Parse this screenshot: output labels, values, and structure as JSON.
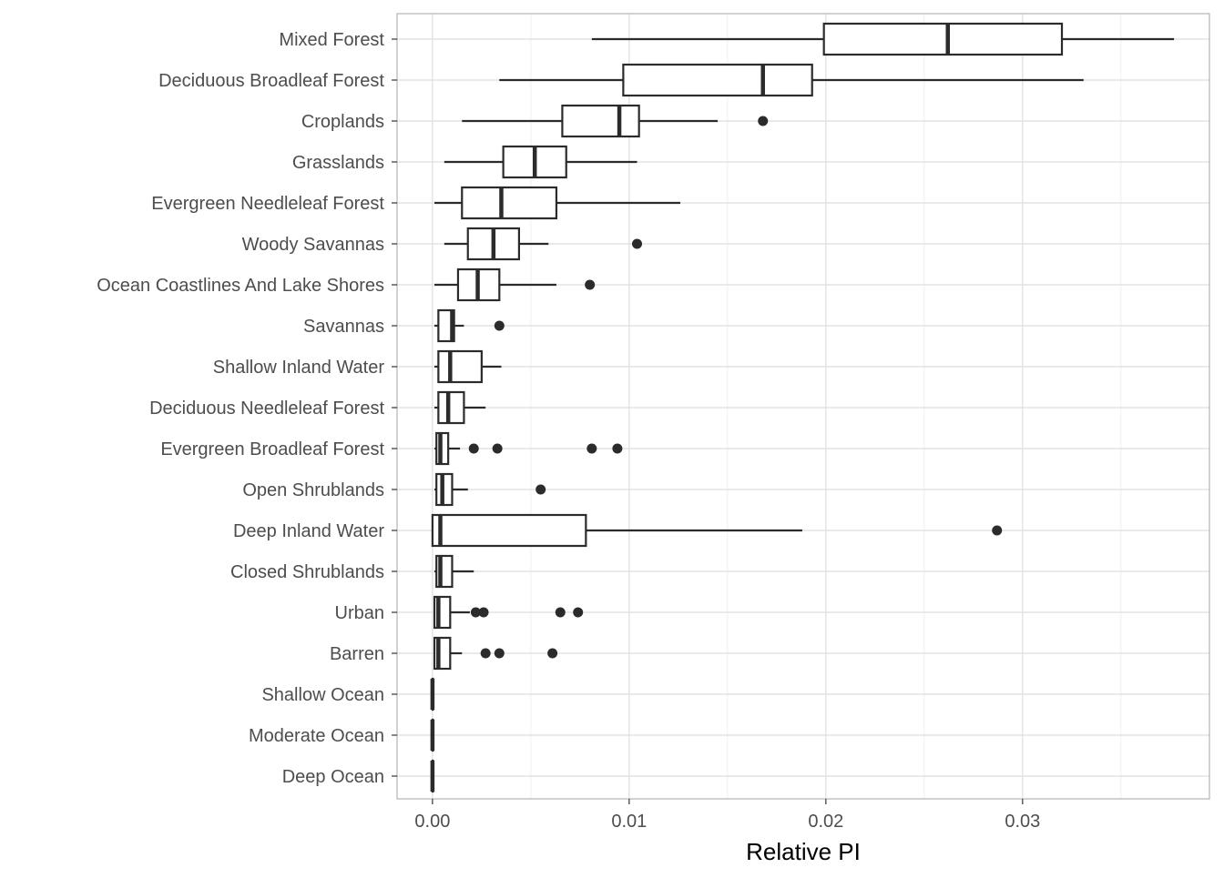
{
  "colors": {
    "grid_major": "#dedede",
    "grid_minor": "#efefef",
    "panel_border": "#b3b3b3",
    "box_stroke": "#2b2b2b",
    "outlier_fill": "#2b2b2b",
    "tick_text": "#4d4d4d"
  },
  "chart_data": {
    "type": "boxplot",
    "orientation": "horizontal",
    "title": "",
    "xlabel": "Relative PI",
    "ylabel": "",
    "xlim": [
      -0.0018,
      0.0395
    ],
    "x_ticks": [
      0,
      0.01,
      0.02,
      0.03
    ],
    "x_tick_labels": [
      "0.00",
      "0.01",
      "0.02",
      "0.03"
    ],
    "grid": true,
    "categories": [
      {
        "label": "Mixed Forest",
        "whisker_low": 0.0081,
        "q1": 0.0199,
        "median": 0.0262,
        "q3": 0.032,
        "whisker_high": 0.0377,
        "outliers": []
      },
      {
        "label": "Deciduous Broadleaf Forest",
        "whisker_low": 0.0034,
        "q1": 0.0097,
        "median": 0.0168,
        "q3": 0.0193,
        "whisker_high": 0.0331,
        "outliers": []
      },
      {
        "label": "Croplands",
        "whisker_low": 0.0015,
        "q1": 0.0066,
        "median": 0.0095,
        "q3": 0.0105,
        "whisker_high": 0.0145,
        "outliers": [
          0.0168
        ]
      },
      {
        "label": "Grasslands",
        "whisker_low": 0.0006,
        "q1": 0.0036,
        "median": 0.0052,
        "q3": 0.0068,
        "whisker_high": 0.0104,
        "outliers": []
      },
      {
        "label": "Evergreen Needleleaf Forest",
        "whisker_low": 0.0001,
        "q1": 0.0015,
        "median": 0.0035,
        "q3": 0.0063,
        "whisker_high": 0.0126,
        "outliers": []
      },
      {
        "label": "Woody Savannas",
        "whisker_low": 0.0006,
        "q1": 0.0018,
        "median": 0.0031,
        "q3": 0.0044,
        "whisker_high": 0.0059,
        "outliers": [
          0.0104
        ]
      },
      {
        "label": "Ocean Coastlines And Lake Shores",
        "whisker_low": 0.0001,
        "q1": 0.0013,
        "median": 0.0023,
        "q3": 0.0034,
        "whisker_high": 0.0063,
        "outliers": [
          0.008
        ]
      },
      {
        "label": "Savannas",
        "whisker_low": 0.0001,
        "q1": 0.0003,
        "median": 0.001,
        "q3": 0.0011,
        "whisker_high": 0.0016,
        "outliers": [
          0.0034
        ]
      },
      {
        "label": "Shallow Inland Water",
        "whisker_low": 0.0001,
        "q1": 0.0003,
        "median": 0.0009,
        "q3": 0.0025,
        "whisker_high": 0.0035,
        "outliers": []
      },
      {
        "label": "Deciduous Needleleaf Forest",
        "whisker_low": 0.0001,
        "q1": 0.0003,
        "median": 0.0008,
        "q3": 0.0016,
        "whisker_high": 0.0027,
        "outliers": []
      },
      {
        "label": "Evergreen Broadleaf Forest",
        "whisker_low": 0.0001,
        "q1": 0.0002,
        "median": 0.0004,
        "q3": 0.0008,
        "whisker_high": 0.0014,
        "outliers": [
          0.0021,
          0.0033,
          0.0081,
          0.0094
        ]
      },
      {
        "label": "Open Shrublands",
        "whisker_low": 0.0001,
        "q1": 0.0002,
        "median": 0.0005,
        "q3": 0.001,
        "whisker_high": 0.0018,
        "outliers": [
          0.0055
        ]
      },
      {
        "label": "Deep Inland Water",
        "whisker_low": 0.0,
        "q1": 0.0,
        "median": 0.0004,
        "q3": 0.0078,
        "whisker_high": 0.0188,
        "outliers": [
          0.0287
        ]
      },
      {
        "label": "Closed Shrublands",
        "whisker_low": 0.0001,
        "q1": 0.0002,
        "median": 0.0004,
        "q3": 0.001,
        "whisker_high": 0.0021,
        "outliers": []
      },
      {
        "label": "Urban",
        "whisker_low": 0.0001,
        "q1": 0.0001,
        "median": 0.0003,
        "q3": 0.0009,
        "whisker_high": 0.0019,
        "outliers": [
          0.0022,
          0.0026,
          0.0065,
          0.0074
        ]
      },
      {
        "label": "Barren",
        "whisker_low": 0.0001,
        "q1": 0.0001,
        "median": 0.0003,
        "q3": 0.0009,
        "whisker_high": 0.0015,
        "outliers": [
          0.0027,
          0.0034,
          0.0061
        ]
      },
      {
        "label": "Shallow Ocean",
        "whisker_low": 0.0,
        "q1": 0.0,
        "median": 0.0,
        "q3": 0.0,
        "whisker_high": 0.0,
        "outliers": []
      },
      {
        "label": "Moderate Ocean",
        "whisker_low": 0.0,
        "q1": 0.0,
        "median": 0.0,
        "q3": 0.0,
        "whisker_high": 0.0,
        "outliers": []
      },
      {
        "label": "Deep Ocean",
        "whisker_low": 0.0,
        "q1": 0.0,
        "median": 0.0,
        "q3": 0.0,
        "whisker_high": 0.0,
        "outliers": []
      }
    ]
  }
}
